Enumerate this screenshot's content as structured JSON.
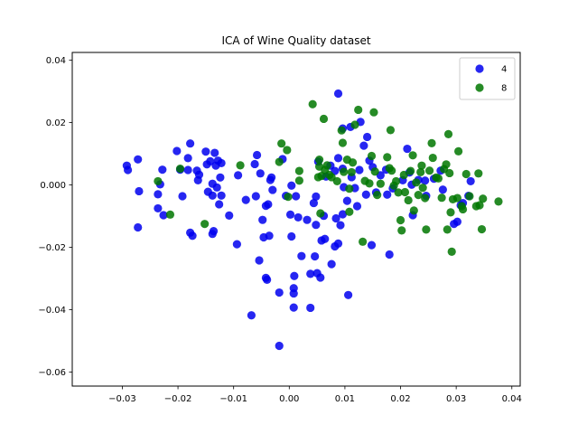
{
  "chart_data": {
    "type": "scatter",
    "title": "ICA of Wine Quality dataset",
    "xlabel": "",
    "ylabel": "",
    "xlim": [
      -0.039,
      0.0415
    ],
    "ylim": [
      -0.0645,
      0.0425
    ],
    "xticks": [
      -0.03,
      -0.02,
      -0.01,
      0.0,
      0.01,
      0.02,
      0.03,
      0.04
    ],
    "xtick_labels": [
      "−0.03",
      "−0.02",
      "−0.01",
      "0.00",
      "0.01",
      "0.02",
      "0.03",
      "0.04"
    ],
    "yticks": [
      -0.06,
      -0.04,
      -0.02,
      0.0,
      0.02,
      0.04
    ],
    "ytick_labels": [
      "−0.06",
      "−0.04",
      "−0.02",
      "0.000",
      "0.02",
      "0.04"
    ],
    "grid": false,
    "legend_position": "top-right",
    "series": [
      {
        "name": "4",
        "color": "#0000ee",
        "points": [
          [
            -0.0292,
            0.0062
          ],
          [
            -0.029,
            0.0048
          ],
          [
            -0.0272,
            0.0082
          ],
          [
            -0.027,
            -0.002
          ],
          [
            -0.0272,
            -0.0136
          ],
          [
            -0.0236,
            -0.003
          ],
          [
            -0.0232,
            0.0002
          ],
          [
            -0.0228,
            0.0049
          ],
          [
            -0.0226,
            -0.0097
          ],
          [
            -0.0236,
            -0.0075
          ],
          [
            -0.0202,
            0.0109
          ],
          [
            -0.0196,
            0.0049
          ],
          [
            -0.0192,
            -0.0036
          ],
          [
            -0.0182,
            0.0048
          ],
          [
            -0.0182,
            0.0086
          ],
          [
            -0.0178,
            0.0133
          ],
          [
            -0.0178,
            -0.0153
          ],
          [
            -0.0174,
            -0.0163
          ],
          [
            -0.0166,
            0.0046
          ],
          [
            -0.0164,
            0.0015
          ],
          [
            -0.0162,
            0.0033
          ],
          [
            -0.015,
            0.0107
          ],
          [
            -0.0148,
            0.0066
          ],
          [
            -0.0146,
            -0.0022
          ],
          [
            -0.0142,
            0.0076
          ],
          [
            -0.0138,
            0.0004
          ],
          [
            -0.0138,
            -0.0034
          ],
          [
            -0.0138,
            -0.0157
          ],
          [
            -0.0136,
            -0.0148
          ],
          [
            -0.0134,
            0.0103
          ],
          [
            -0.0132,
            0.0062
          ],
          [
            -0.013,
            -0.0008
          ],
          [
            -0.0128,
            0.0078
          ],
          [
            -0.0126,
            -0.0062
          ],
          [
            -0.0124,
            0.0024
          ],
          [
            -0.0122,
            -0.0034
          ],
          [
            -0.0122,
            0.007
          ],
          [
            -0.0108,
            -0.0098
          ],
          [
            -0.0094,
            -0.019
          ],
          [
            -0.0092,
            0.0031
          ],
          [
            -0.0078,
            -0.0048
          ],
          [
            -0.0068,
            -0.0418
          ],
          [
            -0.0062,
            0.0067
          ],
          [
            -0.006,
            -0.0036
          ],
          [
            -0.0058,
            0.0096
          ],
          [
            -0.0054,
            -0.0242
          ],
          [
            -0.0052,
            0.0037
          ],
          [
            -0.0048,
            -0.0112
          ],
          [
            -0.0046,
            -0.0168
          ],
          [
            -0.0042,
            -0.0298
          ],
          [
            -0.0042,
            -0.0067
          ],
          [
            -0.004,
            -0.0304
          ],
          [
            -0.0038,
            -0.0062
          ],
          [
            -0.0036,
            -0.0163
          ],
          [
            -0.0034,
            0.0016
          ],
          [
            -0.0032,
            0.0024
          ],
          [
            -0.003,
            -0.0016
          ],
          [
            -0.0018,
            -0.0345
          ],
          [
            -0.0018,
            -0.0516
          ],
          [
            -0.0012,
            0.0083
          ],
          [
            -0.0006,
            -0.0035
          ],
          [
            0.0002,
            -0.0095
          ],
          [
            0.0004,
            -0.0002
          ],
          [
            0.0004,
            -0.0165
          ],
          [
            0.0008,
            -0.0331
          ],
          [
            0.0008,
            -0.0393
          ],
          [
            0.0008,
            -0.0348
          ],
          [
            0.0009,
            -0.0292
          ],
          [
            0.0012,
            -0.0036
          ],
          [
            0.0016,
            -0.0104
          ],
          [
            0.0022,
            -0.0228
          ],
          [
            0.0032,
            -0.0112
          ],
          [
            0.0038,
            -0.0285
          ],
          [
            0.0038,
            -0.0394
          ],
          [
            0.0044,
            -0.0058
          ],
          [
            0.0046,
            -0.0229
          ],
          [
            0.0048,
            -0.0037
          ],
          [
            0.0048,
            -0.0128
          ],
          [
            0.005,
            -0.0283
          ],
          [
            0.0052,
            0.0075
          ],
          [
            0.0056,
            -0.0297
          ],
          [
            0.0058,
            -0.0178
          ],
          [
            0.0062,
            -0.0099
          ],
          [
            0.0064,
            -0.0173
          ],
          [
            0.0066,
            0.0027
          ],
          [
            0.0074,
            0.0062
          ],
          [
            0.0076,
            -0.0254
          ],
          [
            0.0082,
            0.0045
          ],
          [
            0.0082,
            -0.0197
          ],
          [
            0.0084,
            -0.0107
          ],
          [
            0.0088,
            0.0293
          ],
          [
            0.0088,
            0.0086
          ],
          [
            0.0088,
            -0.0188
          ],
          [
            0.0092,
            -0.0129
          ],
          [
            0.0096,
            -0.0094
          ],
          [
            0.0096,
            0.0181
          ],
          [
            0.0096,
            0.0052
          ],
          [
            0.0098,
            -0.0007
          ],
          [
            0.0104,
            -0.0051
          ],
          [
            0.0106,
            -0.0353
          ],
          [
            0.011,
            0.0186
          ],
          [
            0.0112,
            0.0025
          ],
          [
            0.0118,
            -0.001
          ],
          [
            0.0122,
            -0.0068
          ],
          [
            0.0126,
            0.0048
          ],
          [
            0.0128,
            0.0202
          ],
          [
            0.0134,
            0.0126
          ],
          [
            0.0138,
            -0.0031
          ],
          [
            0.014,
            0.0154
          ],
          [
            0.0144,
            0.0078
          ],
          [
            0.0148,
            -0.0193
          ],
          [
            0.015,
            0.0057
          ],
          [
            0.0156,
            -0.0024
          ],
          [
            0.0164,
            0.0031
          ],
          [
            0.0174,
            0.0049
          ],
          [
            0.0176,
            -0.0031
          ],
          [
            0.018,
            -0.0223
          ],
          [
            0.0186,
            -0.0011
          ],
          [
            0.0204,
            0.0015
          ],
          [
            0.0212,
            0.0116
          ],
          [
            0.0216,
            0.004
          ],
          [
            0.022,
            0.0001
          ],
          [
            0.0222,
            -0.0097
          ],
          [
            0.0232,
            0.0016
          ],
          [
            0.0244,
            0.0014
          ],
          [
            0.0246,
            -0.0035
          ],
          [
            0.026,
            0.002
          ],
          [
            0.0272,
            0.0046
          ],
          [
            0.0276,
            -0.0015
          ],
          [
            0.0296,
            -0.0125
          ],
          [
            0.0302,
            -0.0118
          ],
          [
            0.0308,
            -0.0065
          ],
          [
            0.0312,
            -0.0058
          ],
          [
            0.0322,
            -0.0035
          ],
          [
            0.0326,
            0.0012
          ]
        ]
      },
      {
        "name": "8",
        "color": "#007700",
        "points": [
          [
            -0.0236,
            0.0012
          ],
          [
            -0.0214,
            -0.0095
          ],
          [
            -0.0196,
            0.0052
          ],
          [
            -0.0152,
            -0.0125
          ],
          [
            -0.0088,
            0.0063
          ],
          [
            -0.0018,
            0.0074
          ],
          [
            -0.0014,
            0.0133
          ],
          [
            -0.0004,
            0.0112
          ],
          [
            -0.0002,
            -0.0038
          ],
          [
            0.0018,
            0.0045
          ],
          [
            0.0018,
            0.0014
          ],
          [
            0.0042,
            0.0259
          ],
          [
            0.0052,
            0.0025
          ],
          [
            0.0054,
            0.0081
          ],
          [
            0.0054,
            0.0059
          ],
          [
            0.0056,
            -0.0091
          ],
          [
            0.0058,
            0.0029
          ],
          [
            0.0062,
            0.0212
          ],
          [
            0.0064,
            0.0048
          ],
          [
            0.0068,
            0.0063
          ],
          [
            0.0072,
            0.0032
          ],
          [
            0.0076,
            0.0025
          ],
          [
            0.0086,
            0.0012
          ],
          [
            0.0094,
            0.0175
          ],
          [
            0.0096,
            0.0135
          ],
          [
            0.0098,
            0.0042
          ],
          [
            0.0104,
            0.0081
          ],
          [
            0.0108,
            -0.0012
          ],
          [
            0.0108,
            -0.0086
          ],
          [
            0.0112,
            0.0041
          ],
          [
            0.0114,
            0.0072
          ],
          [
            0.0118,
            0.0193
          ],
          [
            0.0124,
            0.0241
          ],
          [
            0.0132,
            -0.0182
          ],
          [
            0.0136,
            0.0013
          ],
          [
            0.0144,
            0.0005
          ],
          [
            0.0148,
            0.0093
          ],
          [
            0.0152,
            0.0233
          ],
          [
            0.0154,
            0.0043
          ],
          [
            0.0158,
            -0.0032
          ],
          [
            0.0164,
            0.0004
          ],
          [
            0.0176,
            0.0089
          ],
          [
            0.018,
            0.0054
          ],
          [
            0.0182,
            0.0176
          ],
          [
            0.0184,
            0.0046
          ],
          [
            0.0188,
            -0.0002
          ],
          [
            0.0192,
            0.0012
          ],
          [
            0.0196,
            -0.0024
          ],
          [
            0.02,
            -0.0113
          ],
          [
            0.0202,
            -0.0146
          ],
          [
            0.0206,
            0.0032
          ],
          [
            0.0208,
            -0.0023
          ],
          [
            0.0214,
            -0.0049
          ],
          [
            0.0218,
            0.0045
          ],
          [
            0.0222,
            0.0095
          ],
          [
            0.0224,
            -0.0082
          ],
          [
            0.0228,
            0.0008
          ],
          [
            0.0232,
            -0.0032
          ],
          [
            0.0236,
            0.0041
          ],
          [
            0.0238,
            0.0062
          ],
          [
            0.024,
            -0.0009
          ],
          [
            0.0244,
            -0.0042
          ],
          [
            0.0246,
            -0.0143
          ],
          [
            0.0252,
            0.0046
          ],
          [
            0.0256,
            0.0134
          ],
          [
            0.0258,
            0.0087
          ],
          [
            0.0264,
            0.0024
          ],
          [
            0.0268,
            0.0021
          ],
          [
            0.0274,
            -0.0041
          ],
          [
            0.0278,
            0.0051
          ],
          [
            0.0282,
            0.0066
          ],
          [
            0.0284,
            -0.0143
          ],
          [
            0.0286,
            0.0163
          ],
          [
            0.0288,
            0.0038
          ],
          [
            0.029,
            -0.0088
          ],
          [
            0.0292,
            -0.0214
          ],
          [
            0.0294,
            -0.0046
          ],
          [
            0.0302,
            -0.0042
          ],
          [
            0.0304,
            0.0108
          ],
          [
            0.031,
            -0.0068
          ],
          [
            0.0312,
            -0.0078
          ],
          [
            0.0318,
            0.0035
          ],
          [
            0.0324,
            -0.0036
          ],
          [
            0.0336,
            -0.0068
          ],
          [
            0.034,
            0.0037
          ],
          [
            0.0342,
            -0.0065
          ],
          [
            0.0346,
            -0.0142
          ],
          [
            0.0348,
            -0.0044
          ],
          [
            0.0376,
            -0.0053
          ]
        ]
      }
    ]
  }
}
